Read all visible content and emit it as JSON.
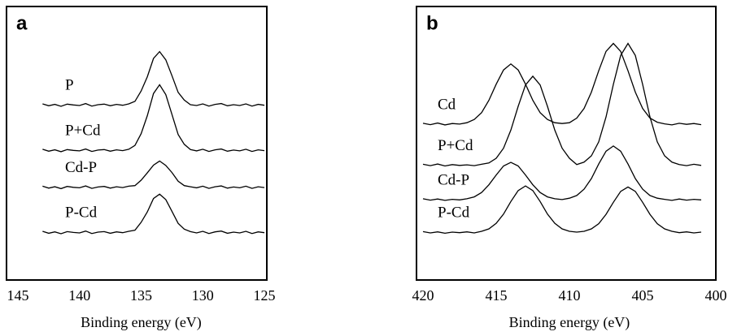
{
  "chart_data": [
    {
      "type": "line",
      "panel": "a",
      "xlabel": "Binding energy (eV)",
      "xlim": [
        145,
        125
      ],
      "xticks": [
        145,
        140,
        135,
        130,
        125
      ],
      "ylim": [
        0,
        100
      ],
      "x": [
        143,
        142.5,
        142,
        141.5,
        141,
        140.5,
        140,
        139.5,
        139,
        138.5,
        138,
        137.5,
        137,
        136.5,
        136,
        135.5,
        135,
        134.5,
        134,
        133.5,
        133,
        132.5,
        132,
        131.5,
        131,
        130.5,
        130,
        129.5,
        129,
        128.5,
        128,
        127.5,
        127,
        126.5,
        126,
        125.5,
        125
      ],
      "series": [
        {
          "name": "P",
          "color": "#000000",
          "values": [
            64.4,
            63.7,
            64.2,
            63.5,
            64.3,
            64.0,
            63.8,
            64.5,
            63.6,
            64.1,
            64.3,
            63.7,
            64.2,
            63.9,
            64.4,
            65.3,
            69.1,
            74.3,
            81.0,
            83.5,
            80.5,
            74.7,
            68.6,
            65.8,
            64.1,
            63.8,
            64.4,
            63.6,
            64.2,
            64.5,
            63.7,
            64.1,
            63.8,
            64.4,
            63.6,
            64.2,
            63.9
          ]
        },
        {
          "name": "P+Cd",
          "color": "#000000",
          "values": [
            47.8,
            47.1,
            47.6,
            46.9,
            47.7,
            47.4,
            47.2,
            47.9,
            47.0,
            47.5,
            47.7,
            47.1,
            47.6,
            47.3,
            47.8,
            49.2,
            53.5,
            60.1,
            68.2,
            71.4,
            67.8,
            60.5,
            53.2,
            49.6,
            47.7,
            47.2,
            47.8,
            47.0,
            47.6,
            47.9,
            47.1,
            47.5,
            47.2,
            47.8,
            47.0,
            47.6,
            47.3
          ]
        },
        {
          "name": "Cd-P",
          "color": "#000000",
          "values": [
            34.3,
            33.6,
            34.1,
            33.4,
            34.2,
            33.9,
            33.7,
            34.4,
            33.5,
            34.0,
            34.2,
            33.6,
            34.1,
            33.8,
            34.3,
            34.5,
            36.5,
            39.2,
            42.0,
            43.5,
            41.9,
            39.3,
            36.1,
            34.5,
            34.1,
            33.7,
            34.3,
            33.5,
            34.1,
            34.4,
            33.6,
            34.0,
            33.7,
            34.3,
            33.5,
            34.1,
            33.8
          ]
        },
        {
          "name": "P-Cd",
          "color": "#000000",
          "values": [
            17.8,
            17.1,
            17.6,
            16.9,
            17.7,
            17.4,
            17.2,
            17.9,
            17.0,
            17.5,
            17.7,
            17.1,
            17.6,
            17.3,
            17.8,
            18.2,
            21.1,
            24.9,
            29.8,
            31.4,
            29.4,
            25.1,
            20.7,
            18.6,
            17.7,
            17.2,
            17.8,
            17.0,
            17.6,
            17.9,
            17.1,
            17.5,
            17.2,
            17.8,
            17.0,
            17.6,
            17.3
          ]
        }
      ]
    },
    {
      "type": "line",
      "panel": "b",
      "xlabel": "Binding energy (eV)",
      "xlim": [
        420,
        400
      ],
      "xticks": [
        420,
        415,
        410,
        405,
        400
      ],
      "ylim": [
        0,
        100
      ],
      "x": [
        420,
        419.5,
        419,
        418.5,
        418,
        417.5,
        417,
        416.5,
        416,
        415.5,
        415,
        414.5,
        414,
        413.5,
        413,
        412.5,
        412,
        411.5,
        411,
        410.5,
        410,
        409.5,
        409,
        408.5,
        408,
        407.5,
        407,
        406.5,
        406,
        405.5,
        405,
        404.5,
        404,
        403.5,
        403,
        402.5,
        402,
        401.5,
        401
      ],
      "series": [
        {
          "name": "Cd",
          "color": "#000000",
          "values": [
            57.3,
            56.8,
            57.4,
            56.7,
            57.2,
            57.0,
            57.5,
            58.7,
            61.2,
            65.7,
            71.6,
            76.8,
            79.0,
            76.8,
            71.6,
            65.7,
            61.2,
            58.7,
            57.5,
            57.2,
            57.5,
            59.2,
            62.7,
            68.7,
            76.5,
            83.6,
            86.5,
            83.6,
            76.5,
            68.7,
            62.7,
            59.2,
            57.7,
            57.1,
            56.7,
            57.3,
            56.9,
            57.2,
            56.8
          ]
        },
        {
          "name": "P+Cd",
          "color": "#000000",
          "values": [
            42.3,
            41.8,
            42.4,
            41.7,
            42.2,
            41.9,
            42.1,
            41.8,
            42.3,
            42.8,
            44.5,
            48.2,
            54.8,
            63.5,
            71.3,
            74.5,
            71.3,
            63.5,
            54.8,
            48.2,
            44.5,
            42.2,
            43.1,
            45.4,
            50.5,
            59.6,
            71.5,
            82.1,
            86.5,
            82.1,
            71.5,
            59.6,
            50.5,
            45.4,
            43.1,
            42.2,
            41.8,
            42.3,
            41.9
          ]
        },
        {
          "name": "Cd-P",
          "color": "#000000",
          "values": [
            29.7,
            29.2,
            29.6,
            29.1,
            29.5,
            29.3,
            29.7,
            30.4,
            32.0,
            34.8,
            38.4,
            41.7,
            43.0,
            41.7,
            38.4,
            34.8,
            32.0,
            30.4,
            29.7,
            29.4,
            29.9,
            30.9,
            33.2,
            37.1,
            42.4,
            47.1,
            49.0,
            47.1,
            42.4,
            37.1,
            33.2,
            30.9,
            29.9,
            29.5,
            29.1,
            29.6,
            29.2,
            29.5,
            29.3
          ]
        },
        {
          "name": "P-Cd",
          "color": "#000000",
          "values": [
            17.7,
            17.2,
            17.6,
            17.1,
            17.5,
            17.3,
            17.6,
            17.2,
            17.8,
            18.7,
            20.7,
            24.1,
            28.7,
            32.7,
            34.4,
            32.7,
            28.7,
            24.1,
            20.7,
            18.7,
            17.8,
            17.5,
            17.8,
            18.7,
            20.6,
            24.0,
            28.4,
            32.4,
            34.0,
            32.4,
            28.4,
            24.0,
            20.6,
            18.7,
            17.8,
            17.3,
            17.6,
            17.2,
            17.5
          ]
        }
      ]
    }
  ]
}
